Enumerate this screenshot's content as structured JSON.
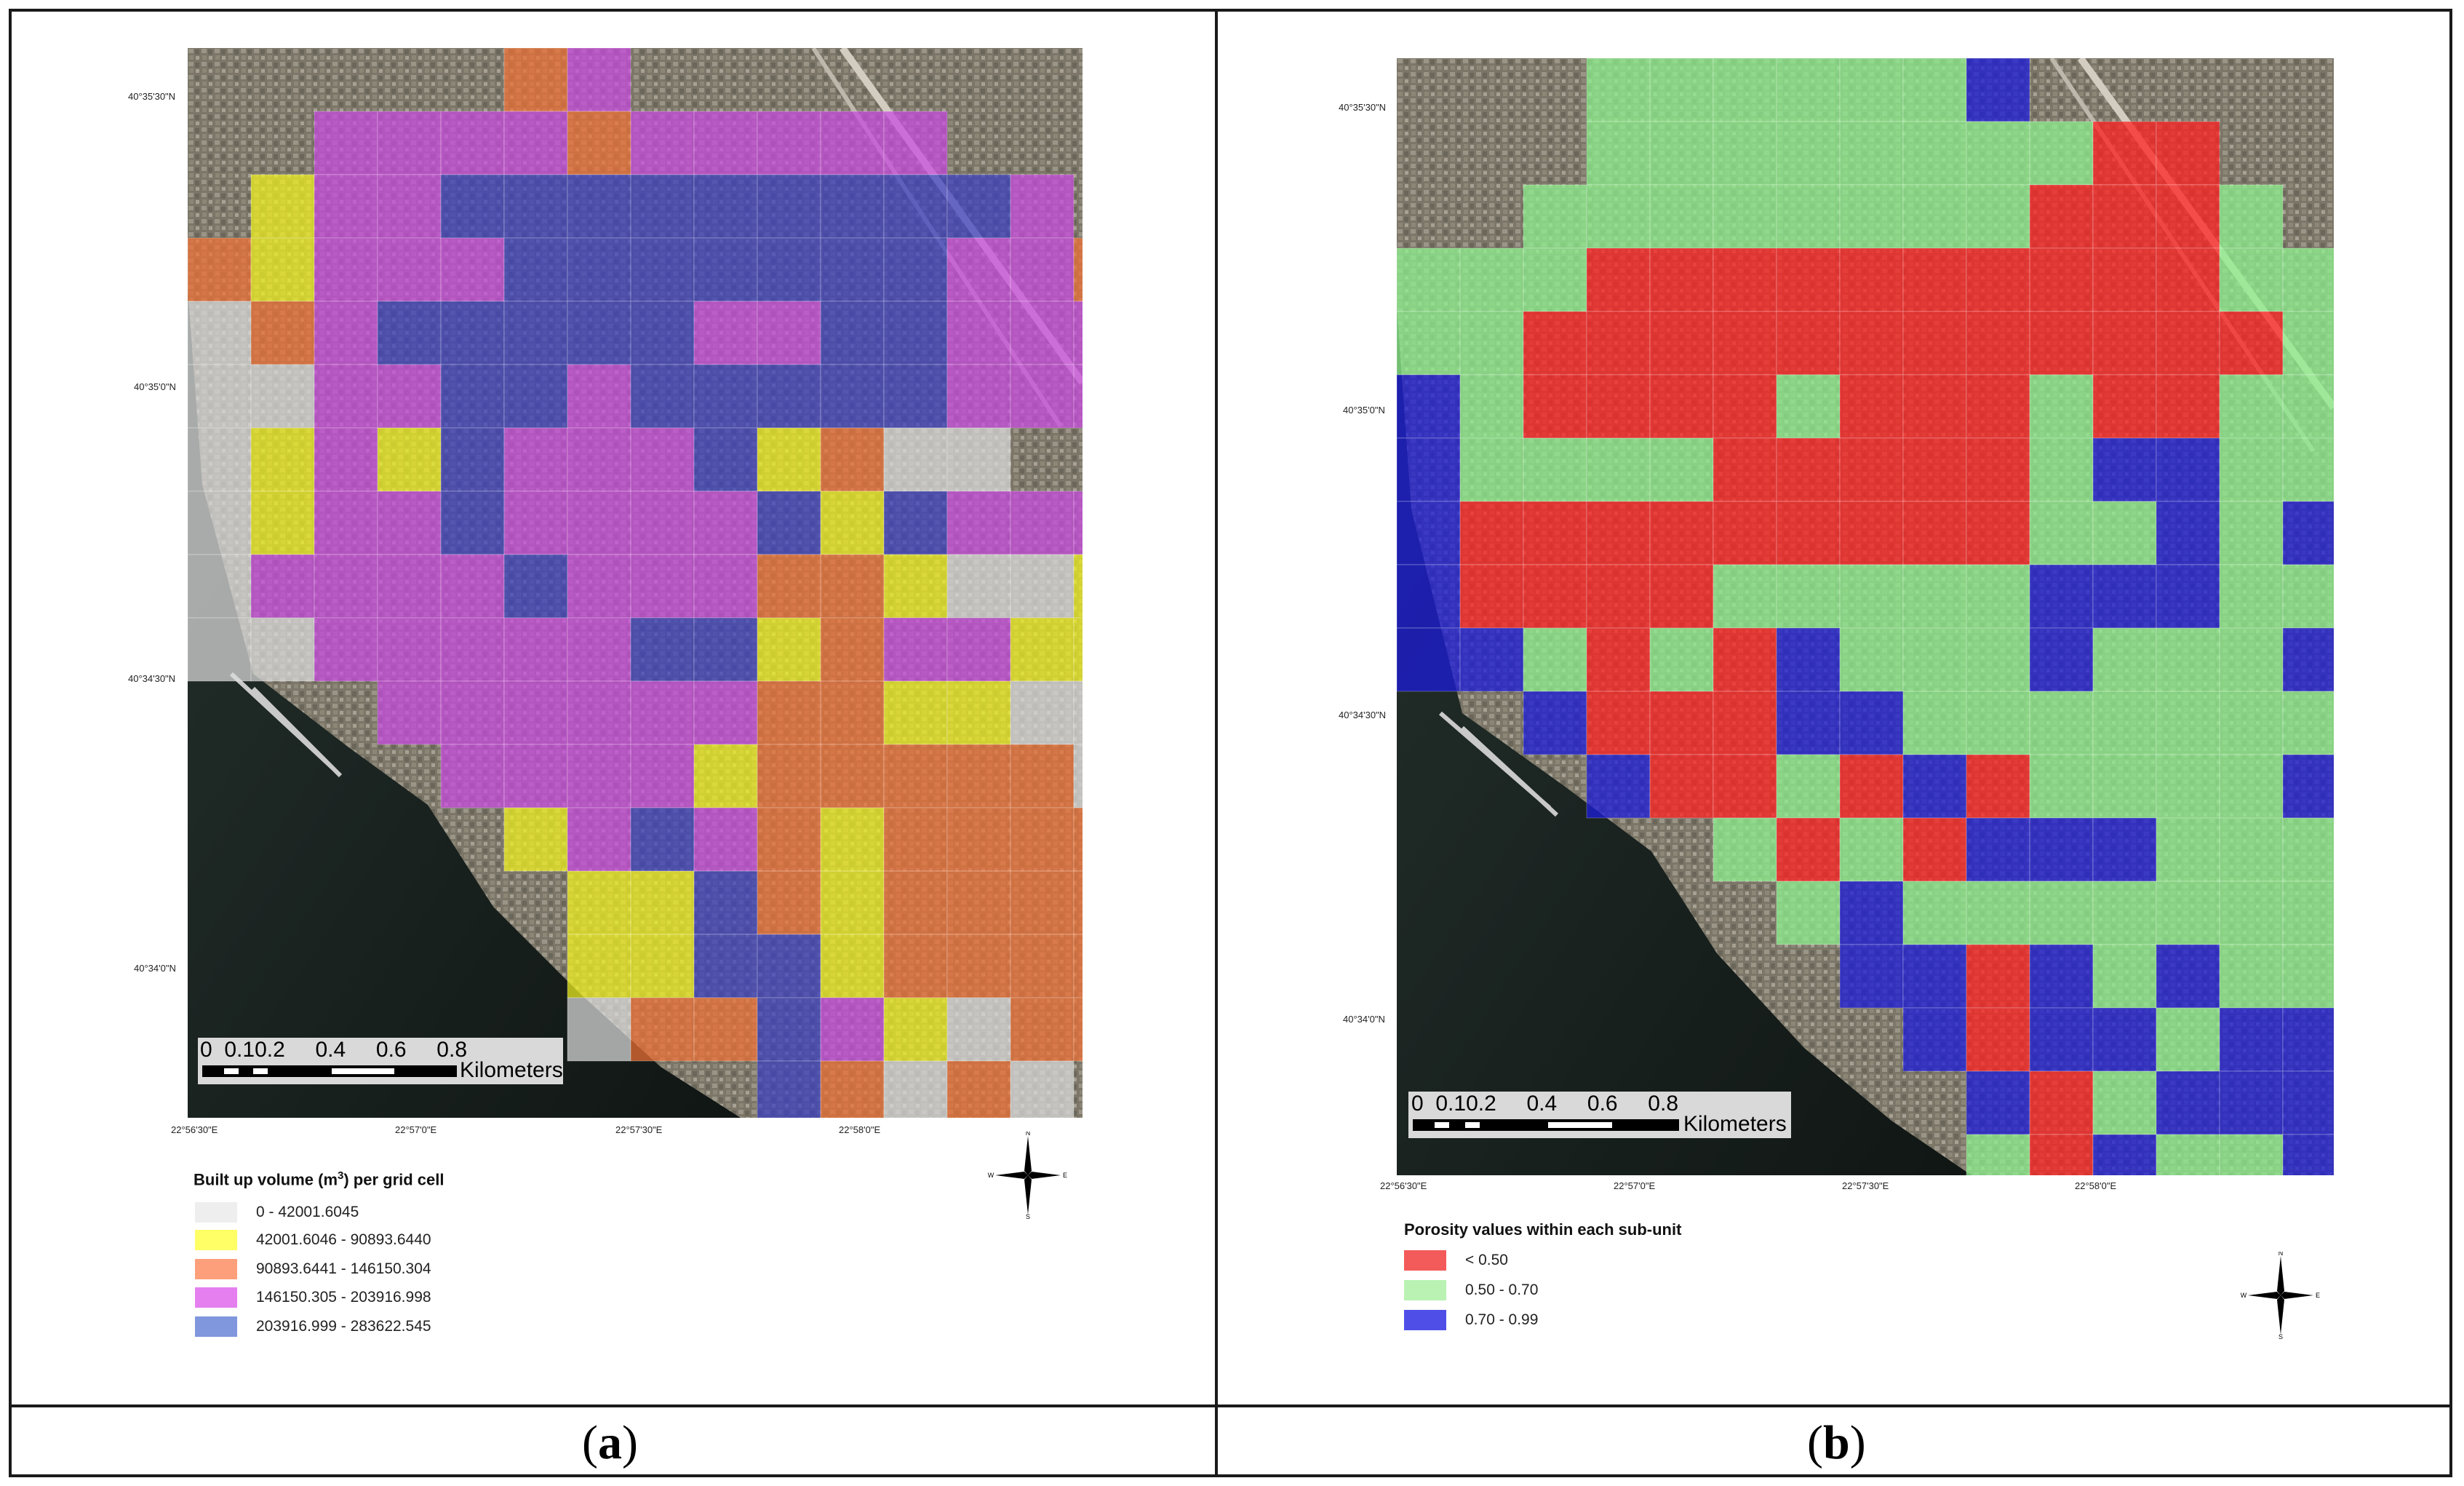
{
  "panels": [
    {
      "id": "a",
      "caption_letter": "a",
      "lat_labels": [
        "40°35'30\"N",
        "40°35'0\"N",
        "40°34'30\"N",
        "40°34'0\"N"
      ],
      "lon_labels": [
        "22°56'30\"E",
        "22°57'0\"E",
        "22°57'30\"E",
        "22°58'0\"E"
      ],
      "scale": {
        "ticks": [
          "0",
          "0.1",
          "0.2",
          "0.4",
          "0.6",
          "0.8"
        ],
        "unit": "Kilometers"
      },
      "legend": {
        "title_prefix": "Built up volume (m",
        "title_sup": "3",
        "title_suffix": ") per grid cell",
        "items": [
          {
            "label": "0 - 42001.6045",
            "color": "#eeeeee"
          },
          {
            "label": "42001.6046 - 90893.6440",
            "color": "#ffff66"
          },
          {
            "label": "90893.6441 - 146150.304",
            "color": "#fc9f7a"
          },
          {
            "label": "146150.305 - 203916.998",
            "color": "#e57ff0"
          },
          {
            "label": "203916.999 - 283622.545",
            "color": "#8096dd"
          }
        ]
      },
      "grid": {
        "colors": {
          "0": "#dcdcdc",
          "1": "#f2f21e",
          "2": "#f07034",
          "3": "#c94ae0",
          "4": "#3a3ec0"
        },
        "rows": [
          ".....23.........",
          "..3333233333....",
          ".1334444444443..",
          "213334444444332.",
          "0234444433443332",
          "0033443444443332",
          "0131433341200..1",
          "0133433334143331",
          "03333433322100111",
          "0033333441233110",
          "...333333221100100",
          "....3333122222011",
          ".....134321222212",
          "......1142122222",
          "......1144122222",
          "......022431022",
          ".........42020.",
          ".........22000.",
          "............00."
        ]
      }
    },
    {
      "id": "b",
      "caption_letter": "b",
      "lat_labels": [
        "40°35'30\"N",
        "40°35'0\"N",
        "40°34'30\"N",
        "40°34'0\"N"
      ],
      "lon_labels": [
        "22°56'30\"E",
        "22°57'0\"E",
        "22°57'30\"E",
        "22°58'0\"E"
      ],
      "scale": {
        "ticks": [
          "0",
          "0.1",
          "0.2",
          "0.4",
          "0.6",
          "0.8"
        ],
        "unit": "Kilometers"
      },
      "legend": {
        "title": "Porosity values within each sub-unit",
        "items": [
          {
            "label": "< 0.50",
            "color": "#f35a5a"
          },
          {
            "label": "0.50 - 0.70",
            "color": "#b9f2b3"
          },
          {
            "label": "0.70 - 0.99",
            "color": "#4f4fe8"
          }
        ]
      },
      "grid": {
        "colors": {
          "0": "#ff2222",
          "1": "#8ef08e",
          "2": "#1c1cd8"
        },
        "rows": [
          "...1111112.....",
          "...1111111100...",
          "..111111110001...",
          "1110000000000111.",
          "11000000000000111",
          "2100001000100110",
          "21111000001221120",
          "20000000001121222",
          "20000111112221112",
          "221010211121112222",
          "..200022111111122..",
          "...2001020111121212",
          ".....1010222111111111",
          "......1211111111111",
          ".......220212111111",
          "........2022122111",
          ".........201222222",
          ".........10211222",
          ".........0011222.",
          ".........0022222.",
          "..............22."
        ]
      }
    }
  ]
}
